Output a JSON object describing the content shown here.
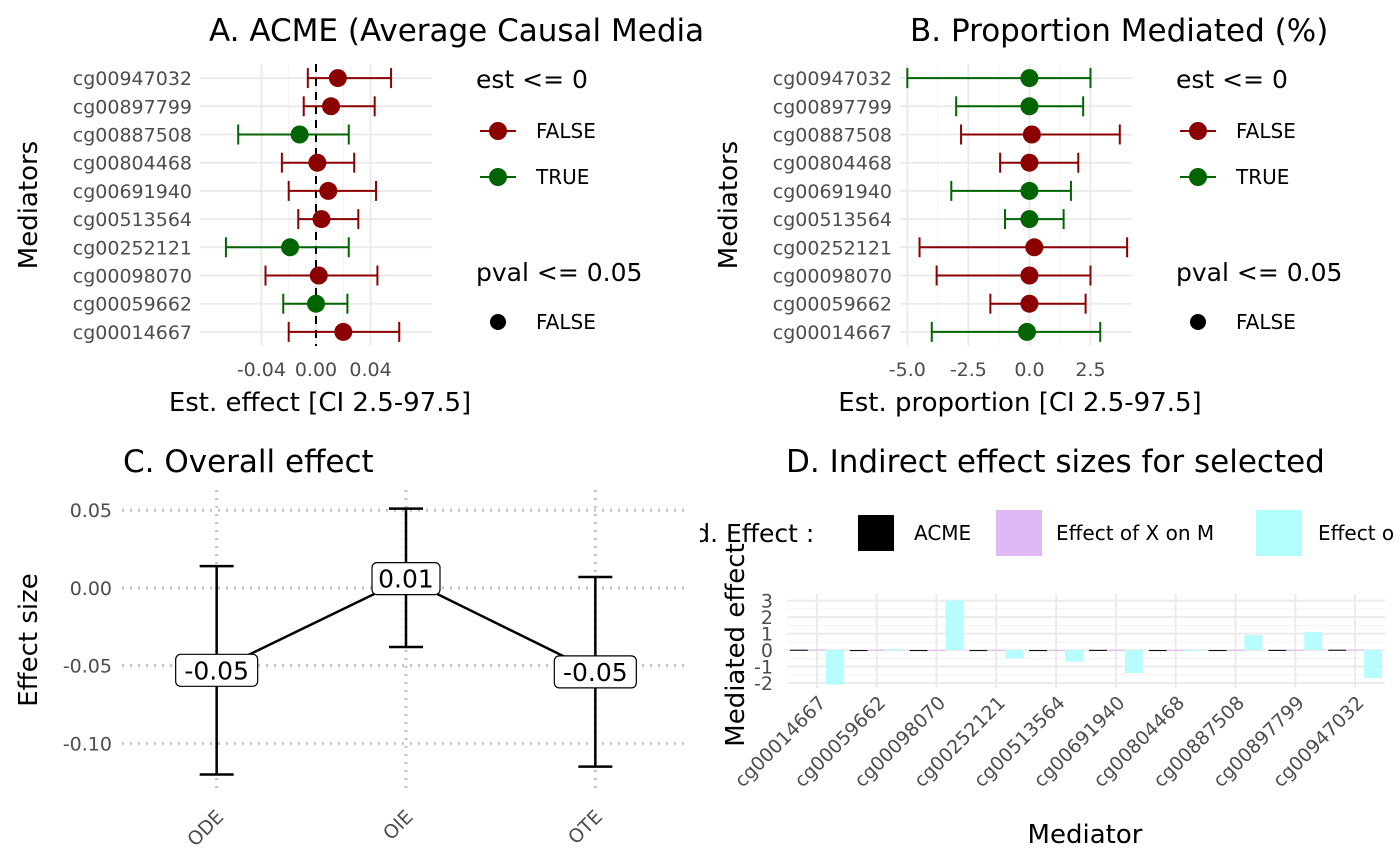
{
  "colors": {
    "false": "#8b0000",
    "true": "#006400",
    "acme": "#000000",
    "xm": "#e0b8f5",
    "my": "#b3fcff"
  },
  "legend_est": {
    "title": "est <= 0",
    "items": [
      "FALSE",
      "TRUE"
    ]
  },
  "legend_pval": {
    "title": "pval <= 0.05",
    "items": [
      "FALSE"
    ]
  },
  "chart_data": [
    {
      "id": "A",
      "type": "scatter",
      "title": "A. ACME (Average Causal Mediation Effect)",
      "title_visible": "A. ACME (Average Causal Me",
      "xlabel": "Est. effect [CI 2.5-97.5]",
      "ylabel": "Mediators",
      "xlim": [
        -0.085,
        0.085
      ],
      "xticks": [
        "-0.04",
        "0.00",
        "0.04"
      ],
      "xtick_values": [
        -0.04,
        0,
        0.04
      ],
      "ref_line": 0,
      "categories": [
        "cg00947032",
        "cg00897799",
        "cg00887508",
        "cg00804468",
        "cg00691940",
        "cg00513564",
        "cg00252121",
        "cg00098070",
        "cg00059662",
        "cg00014667"
      ],
      "est": [
        0.016,
        0.011,
        -0.012,
        0.001,
        0.009,
        0.004,
        -0.019,
        0.002,
        0.0,
        0.02
      ],
      "lower": [
        -0.006,
        -0.009,
        -0.057,
        -0.025,
        -0.02,
        -0.013,
        -0.066,
        -0.037,
        -0.024,
        -0.02
      ],
      "upper": [
        0.055,
        0.043,
        0.024,
        0.028,
        0.044,
        0.031,
        0.024,
        0.045,
        0.023,
        0.061
      ],
      "est_le_0": [
        "FALSE",
        "FALSE",
        "TRUE",
        "FALSE",
        "FALSE",
        "FALSE",
        "TRUE",
        "FALSE",
        "TRUE",
        "FALSE"
      ]
    },
    {
      "id": "B",
      "type": "scatter",
      "title": "B. Proportion Mediated (%)",
      "xlabel": "Est. proportion [CI 2.5-97.5]",
      "ylabel": "Mediators",
      "xlim": [
        -5.3,
        4.2
      ],
      "xticks": [
        "-5.0",
        "-2.5",
        "0.0",
        "2.5"
      ],
      "xtick_values": [
        -5,
        -2.5,
        0,
        2.5
      ],
      "categories": [
        "cg00947032",
        "cg00897799",
        "cg00887508",
        "cg00804468",
        "cg00691940",
        "cg00513564",
        "cg00252121",
        "cg00098070",
        "cg00059662",
        "cg00014667"
      ],
      "est": [
        0.0,
        0.0,
        0.1,
        0.0,
        0.0,
        0.0,
        0.2,
        0.0,
        0.0,
        -0.1
      ],
      "lower": [
        -5.0,
        -3.0,
        -2.8,
        -1.2,
        -3.2,
        -1.0,
        -4.5,
        -3.8,
        -1.6,
        -4.0
      ],
      "upper": [
        2.5,
        2.2,
        3.7,
        2.0,
        1.7,
        1.4,
        4.0,
        2.5,
        2.3,
        2.9
      ],
      "est_le_0": [
        "TRUE",
        "TRUE",
        "FALSE",
        "FALSE",
        "TRUE",
        "TRUE",
        "FALSE",
        "FALSE",
        "FALSE",
        "TRUE"
      ]
    },
    {
      "id": "C",
      "type": "line",
      "title": "C. Overall effect",
      "xlabel": "",
      "ylabel": "Effect size",
      "ylim": [
        -0.13,
        0.063
      ],
      "yticks": [
        "0.05",
        "0.00",
        "-0.05",
        "-0.10"
      ],
      "ytick_values": [
        0.05,
        0,
        -0.05,
        -0.1
      ],
      "categories": [
        "ODE",
        "OIE",
        "OTE"
      ],
      "values": [
        -0.053,
        0.006,
        -0.054
      ],
      "lower": [
        -0.12,
        -0.038,
        -0.115
      ],
      "upper": [
        0.014,
        0.051,
        0.007
      ],
      "labels": [
        "-0.05",
        "0.01",
        "-0.05"
      ]
    },
    {
      "id": "D",
      "type": "bar",
      "title": "D. Indirect effect sizes for selected mediators",
      "title_visible": "D. Indirect effect sizes for selected",
      "xlabel": "Mediator",
      "ylabel": "Mediated effect",
      "ylim": [
        -2.3,
        3.4
      ],
      "yticks": [
        "3",
        "2",
        "1",
        "0",
        "-1",
        "-2"
      ],
      "ytick_values": [
        3,
        2,
        1,
        0,
        -1,
        -2
      ],
      "legend_title": "Ind. Effect :",
      "legend_items": [
        "ACME",
        "Effect of X on M",
        "Effect of M on Y"
      ],
      "legend_visible": [
        "ACME",
        "Effect of X on M",
        "Effect o"
      ],
      "categories": [
        "cg00014667",
        "cg00059662",
        "cg00098070",
        "cg00252121",
        "cg00513564",
        "cg00691940",
        "cg00804468",
        "cg00887508",
        "cg00897799",
        "cg00947032"
      ],
      "series": [
        {
          "name": "ACME",
          "values": [
            0.02,
            0.0,
            0.0,
            -0.02,
            0.0,
            0.01,
            0.0,
            -0.01,
            0.01,
            0.02
          ]
        },
        {
          "name": "Effect of X on M",
          "values": [
            0.03,
            0.02,
            0.01,
            0.01,
            0.0,
            0.01,
            0.01,
            0.01,
            0.01,
            0.03
          ]
        },
        {
          "name": "Effect of M on Y",
          "values": [
            -2.1,
            0.05,
            3.0,
            -0.5,
            -0.7,
            -1.4,
            0.0,
            0.9,
            1.1,
            -1.7
          ]
        }
      ]
    }
  ]
}
